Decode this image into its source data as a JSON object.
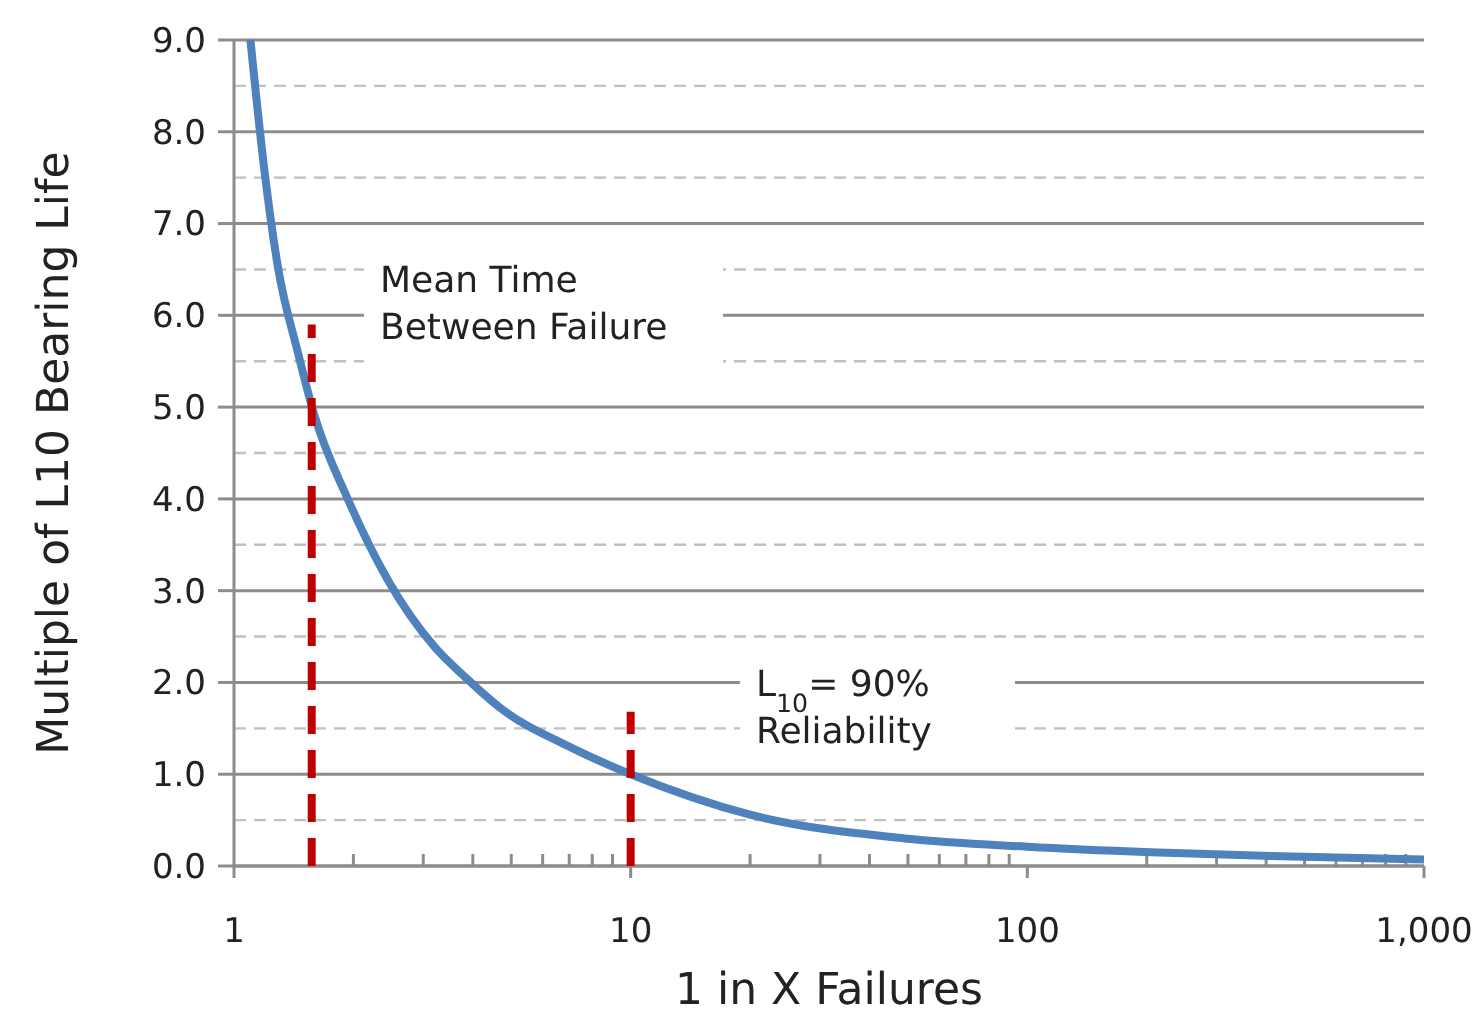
{
  "chart_data": {
    "type": "line",
    "xlabel": "1 in X Failures",
    "ylabel": "Multiple of L10 Bearing Life",
    "log": "x",
    "xlim": [
      1,
      1000
    ],
    "ylim": [
      0,
      9
    ],
    "xticks": [
      1,
      {
        "value": 2,
        "label": null
      },
      {
        "value": 3,
        "label": null
      },
      {
        "value": 4,
        "label": null
      },
      {
        "value": 5,
        "label": null
      },
      {
        "value": 6,
        "label": null
      },
      {
        "value": 7,
        "label": null
      },
      {
        "value": 8,
        "label": null
      },
      {
        "value": 9,
        "label": null
      },
      10,
      {
        "value": 20,
        "label": null
      },
      {
        "value": 30,
        "label": null
      },
      {
        "value": 40,
        "label": null
      },
      {
        "value": 50,
        "label": null
      },
      {
        "value": 60,
        "label": null
      },
      {
        "value": 70,
        "label": null
      },
      {
        "value": 80,
        "label": null
      },
      {
        "value": 90,
        "label": null
      },
      100,
      {
        "value": 200,
        "label": null
      },
      {
        "value": 300,
        "label": null
      },
      {
        "value": 400,
        "label": null
      },
      {
        "value": 500,
        "label": null
      },
      {
        "value": 600,
        "label": null
      },
      {
        "value": 700,
        "label": null
      },
      {
        "value": 800,
        "label": null
      },
      {
        "value": 900,
        "label": null
      },
      {
        "value": 1000,
        "label": "1,000"
      }
    ],
    "yticks": [
      {
        "value": 0,
        "label": "0.0"
      },
      {
        "value": 0.5,
        "label": null
      },
      {
        "value": 1,
        "label": "1.0"
      },
      {
        "value": 1.5,
        "label": null
      },
      {
        "value": 2,
        "label": "2.0"
      },
      {
        "value": 2.5,
        "label": null
      },
      {
        "value": 3,
        "label": "3.0"
      },
      {
        "value": 3.5,
        "label": null
      },
      {
        "value": 4,
        "label": "4.0"
      },
      {
        "value": 4.5,
        "label": null
      },
      {
        "value": 5,
        "label": "5.0"
      },
      {
        "value": 5.5,
        "label": null
      },
      {
        "value": 6,
        "label": "6.0"
      },
      {
        "value": 6.5,
        "label": null
      },
      {
        "value": 7,
        "label": "7.0"
      },
      {
        "value": 7.5,
        "label": null
      },
      {
        "value": 8,
        "label": "8.0"
      },
      {
        "value": 8.5,
        "label": null
      },
      {
        "value": 9,
        "label": "9.0"
      }
    ],
    "grid": "y",
    "marker": "none",
    "series": [
      {
        "color": "#4f81bd",
        "line_style": "solid",
        "x": [
          1.1,
          1.19,
          1.29,
          1.45,
          1.59,
          1.94,
          2.44,
          3.2,
          3.89,
          4.7,
          7.0,
          10,
          20,
          49,
          100,
          205,
          410,
          1000
        ],
        "values": [
          9,
          7.62,
          6.53,
          5.59,
          4.93,
          3.99,
          3.12,
          2.39,
          2.03,
          1.72,
          1.3,
          1.0,
          0.56,
          0.3,
          0.21,
          0.15,
          0.11,
          0.07
        ]
      },
      {
        "color": "#c00000",
        "line_style": "dashed",
        "x": [
          1.57,
          1.57
        ],
        "values": [
          0,
          5.9
        ]
      },
      {
        "color": "#c00000",
        "line_style": "dashed",
        "x": [
          10,
          10
        ],
        "values": [
          0,
          1.68
        ]
      }
    ],
    "annotations": [
      "Mean Time\nBetween Failure",
      "L$_{10}$= 90%\nReliability"
    ]
  }
}
